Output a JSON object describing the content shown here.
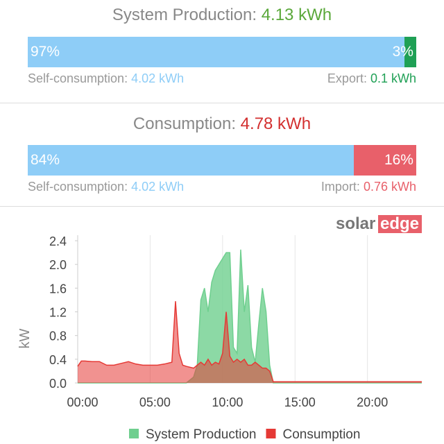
{
  "production": {
    "title": "System Production:",
    "total": "4.13 kWh",
    "values": [
      97,
      3
    ],
    "value_labels": [
      "97%",
      "3%"
    ],
    "left_label": "Self-consumption:",
    "left_value": "4.02 kWh",
    "right_label": "Export:",
    "right_value": "0.1 kWh"
  },
  "consumption": {
    "title": "Consumption:",
    "total": "4.78 kWh",
    "values": [
      84,
      16
    ],
    "value_labels": [
      "84%",
      "16%"
    ],
    "left_label": "Self-consumption:",
    "left_value": "4.02 kWh",
    "right_label": "Import:",
    "right_value": "0.76 kWh"
  },
  "logo": [
    "solar",
    "edge"
  ],
  "chart_data": {
    "type": "area",
    "y_label": "kW",
    "x": [
      0,
      0.25,
      0.5,
      1,
      1.5,
      2,
      2.5,
      3,
      3.5,
      4,
      4.5,
      5,
      5.5,
      6,
      6.5,
      6.75,
      7,
      7.25,
      7.5,
      8,
      8.25,
      8.5,
      8.75,
      9,
      9.25,
      9.5,
      9.75,
      10,
      10.25,
      10.5,
      10.75,
      11,
      11.25,
      11.5,
      11.75,
      12,
      12.25,
      12.5,
      12.75,
      13,
      13.25,
      13.5,
      14,
      18,
      23.75
    ],
    "series": [
      {
        "name": "System Production",
        "color": "#6fcf8f",
        "values": [
          0,
          0,
          0,
          0,
          0,
          0,
          0,
          0,
          0,
          0,
          0,
          0,
          0,
          0,
          0,
          0,
          0,
          0,
          0,
          0.1,
          0.3,
          1.4,
          1.6,
          1.2,
          1.7,
          1.9,
          2.0,
          2.1,
          2.2,
          2.2,
          0.6,
          0.5,
          2.25,
          1.2,
          1.65,
          0.6,
          0.35,
          1.0,
          1.6,
          1.2,
          0.3,
          0,
          0,
          0,
          0
        ]
      },
      {
        "name": "Consumption",
        "color": "#e53935",
        "values": [
          0.28,
          0.37,
          0.37,
          0.36,
          0.36,
          0.3,
          0.3,
          0.33,
          0.36,
          0.32,
          0.3,
          0.3,
          0.3,
          0.32,
          0.35,
          1.38,
          0.5,
          0.3,
          0.28,
          0.25,
          0.3,
          0.35,
          0.3,
          0.4,
          0.3,
          0.35,
          0.32,
          0.5,
          1.2,
          0.45,
          0.35,
          0.4,
          0.35,
          0.4,
          0.3,
          0.3,
          0.35,
          0.3,
          0.25,
          0.25,
          0.2,
          0.02,
          0.02,
          0.02,
          0.02
        ]
      }
    ],
    "xlim": [
      0,
      23.75
    ],
    "xticks": [
      {
        "value": 0,
        "label": "00:00"
      },
      {
        "value": 5,
        "label": "05:00"
      },
      {
        "value": 10,
        "label": "10:00"
      },
      {
        "value": 15,
        "label": "15:00"
      },
      {
        "value": 20,
        "label": "20:00"
      }
    ],
    "ylim": [
      0,
      2.4
    ],
    "yticks": [
      {
        "value": 0,
        "label": "0.0"
      },
      0.4,
      0.8,
      1.2,
      1.6,
      {
        "value": 2,
        "label": "2.0"
      },
      2.4
    ],
    "grid": true
  }
}
